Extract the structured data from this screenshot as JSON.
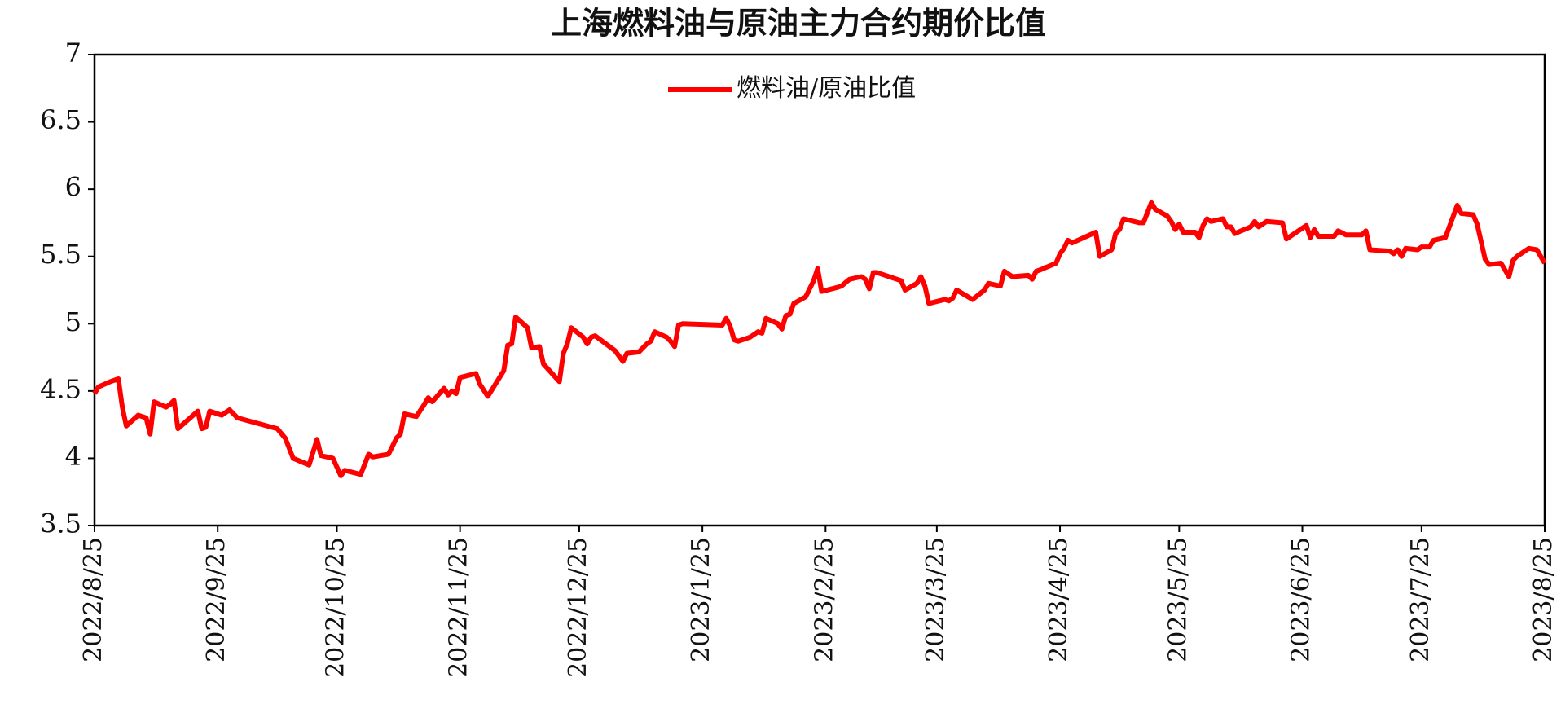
{
  "chart_data": {
    "type": "line",
    "title": "上海燃料油与原油主力合约期价比值",
    "x": [
      "2022/8/25",
      "2022/8/26",
      "2022/8/29",
      "2022/8/31",
      "2022/9/1",
      "2022/9/2",
      "2022/9/5",
      "2022/9/7",
      "2022/9/8",
      "2022/9/9",
      "2022/9/12",
      "2022/9/13",
      "2022/9/14",
      "2022/9/15",
      "2022/9/20",
      "2022/9/21",
      "2022/9/22",
      "2022/9/23",
      "2022/9/26",
      "2022/9/28",
      "2022/9/29",
      "2022/9/30",
      "2022/10/10",
      "2022/10/12",
      "2022/10/14",
      "2022/10/18",
      "2022/10/20",
      "2022/10/21",
      "2022/10/24",
      "2022/10/26",
      "2022/10/27",
      "2022/10/31",
      "2022/11/2",
      "2022/11/3",
      "2022/11/7",
      "2022/11/9",
      "2022/11/10",
      "2022/11/11",
      "2022/11/14",
      "2022/11/16",
      "2022/11/17",
      "2022/11/18",
      "2022/11/21",
      "2022/11/22",
      "2022/11/23",
      "2022/11/24",
      "2022/11/25",
      "2022/11/29",
      "2022/11/30",
      "2022/12/2",
      "2022/12/6",
      "2022/12/7",
      "2022/12/8",
      "2022/12/9",
      "2022/12/12",
      "2022/12/13",
      "2022/12/15",
      "2022/12/16",
      "2022/12/20",
      "2022/12/21",
      "2022/12/22",
      "2022/12/23",
      "2022/12/26",
      "2022/12/27",
      "2022/12/28",
      "2022/12/29",
      "2023/1/3",
      "2023/1/5",
      "2023/1/6",
      "2023/1/9",
      "2023/1/11",
      "2023/1/12",
      "2023/1/13",
      "2023/1/16",
      "2023/1/17",
      "2023/1/18",
      "2023/1/19",
      "2023/1/20",
      "2023/1/30",
      "2023/1/31",
      "2023/2/1",
      "2023/2/2",
      "2023/2/3",
      "2023/2/6",
      "2023/2/8",
      "2023/2/9",
      "2023/2/10",
      "2023/2/13",
      "2023/2/14",
      "2023/2/15",
      "2023/2/16",
      "2023/2/17",
      "2023/2/20",
      "2023/2/22",
      "2023/2/23",
      "2023/2/24",
      "2023/2/28",
      "2023/3/1",
      "2023/3/3",
      "2023/3/6",
      "2023/3/7",
      "2023/3/8",
      "2023/3/9",
      "2023/3/10",
      "2023/3/13",
      "2023/3/16",
      "2023/3/17",
      "2023/3/20",
      "2023/3/21",
      "2023/3/22",
      "2023/3/23",
      "2023/3/27",
      "2023/3/28",
      "2023/3/29",
      "2023/3/30",
      "2023/4/3",
      "2023/4/6",
      "2023/4/7",
      "2023/4/10",
      "2023/4/11",
      "2023/4/13",
      "2023/4/17",
      "2023/4/18",
      "2023/4/19",
      "2023/4/20",
      "2023/4/24",
      "2023/4/25",
      "2023/4/26",
      "2023/4/27",
      "2023/4/28",
      "2023/5/4",
      "2023/5/5",
      "2023/5/8",
      "2023/5/9",
      "2023/5/10",
      "2023/5/11",
      "2023/5/15",
      "2023/5/16",
      "2023/5/18",
      "2023/5/19",
      "2023/5/22",
      "2023/5/23",
      "2023/5/24",
      "2023/5/25",
      "2023/5/26",
      "2023/5/29",
      "2023/5/30",
      "2023/5/31",
      "2023/6/1",
      "2023/6/2",
      "2023/6/5",
      "2023/6/6",
      "2023/6/7",
      "2023/6/8",
      "2023/6/12",
      "2023/6/13",
      "2023/6/14",
      "2023/6/16",
      "2023/6/20",
      "2023/6/21",
      "2023/6/26",
      "2023/6/27",
      "2023/6/28",
      "2023/6/29",
      "2023/7/3",
      "2023/7/4",
      "2023/7/6",
      "2023/7/10",
      "2023/7/11",
      "2023/7/12",
      "2023/7/17",
      "2023/7/18",
      "2023/7/19",
      "2023/7/20",
      "2023/7/21",
      "2023/7/24",
      "2023/7/25",
      "2023/7/27",
      "2023/7/28",
      "2023/7/31",
      "2023/8/3",
      "2023/8/4",
      "2023/8/7",
      "2023/8/8",
      "2023/8/10",
      "2023/8/11",
      "2023/8/14",
      "2023/8/16",
      "2023/8/17",
      "2023/8/18",
      "2023/8/21",
      "2023/8/23",
      "2023/8/25"
    ],
    "series": [
      {
        "name": "燃料油/原油比值",
        "color": "#ff0000",
        "values": [
          4.48,
          4.53,
          4.57,
          4.59,
          4.38,
          4.24,
          4.32,
          4.3,
          4.18,
          4.42,
          4.38,
          4.4,
          4.43,
          4.22,
          4.35,
          4.22,
          4.23,
          4.35,
          4.32,
          4.36,
          4.33,
          4.3,
          4.22,
          4.15,
          4.0,
          3.95,
          4.14,
          4.02,
          4.0,
          3.87,
          3.91,
          3.88,
          4.03,
          4.01,
          4.03,
          4.15,
          4.18,
          4.33,
          4.31,
          4.4,
          4.45,
          4.42,
          4.52,
          4.47,
          4.5,
          4.48,
          4.6,
          4.63,
          4.55,
          4.46,
          4.65,
          4.84,
          4.85,
          5.05,
          4.97,
          4.82,
          4.83,
          4.7,
          4.57,
          4.78,
          4.85,
          4.97,
          4.9,
          4.85,
          4.9,
          4.91,
          4.8,
          4.72,
          4.78,
          4.79,
          4.85,
          4.87,
          4.94,
          4.9,
          4.87,
          4.83,
          4.99,
          5.0,
          4.99,
          5.04,
          4.98,
          4.88,
          4.87,
          4.9,
          4.94,
          4.93,
          5.04,
          5.0,
          4.96,
          5.06,
          5.07,
          5.15,
          5.2,
          5.32,
          5.41,
          5.24,
          5.27,
          5.28,
          5.33,
          5.35,
          5.33,
          5.26,
          5.38,
          5.38,
          5.35,
          5.32,
          5.25,
          5.3,
          5.35,
          5.28,
          5.15,
          5.18,
          5.17,
          5.19,
          5.25,
          5.18,
          5.25,
          5.3,
          5.28,
          5.39,
          5.35,
          5.36,
          5.33,
          5.39,
          5.4,
          5.45,
          5.52,
          5.56,
          5.62,
          5.6,
          5.68,
          5.5,
          5.55,
          5.67,
          5.7,
          5.78,
          5.75,
          5.75,
          5.9,
          5.85,
          5.8,
          5.76,
          5.7,
          5.74,
          5.68,
          5.68,
          5.64,
          5.73,
          5.78,
          5.76,
          5.78,
          5.72,
          5.72,
          5.67,
          5.72,
          5.76,
          5.72,
          5.76,
          5.75,
          5.63,
          5.73,
          5.64,
          5.7,
          5.65,
          5.65,
          5.69,
          5.66,
          5.66,
          5.69,
          5.55,
          5.54,
          5.52,
          5.55,
          5.5,
          5.56,
          5.55,
          5.57,
          5.57,
          5.62,
          5.64,
          5.88,
          5.82,
          5.81,
          5.74,
          5.48,
          5.44,
          5.45,
          5.35,
          5.47,
          5.5,
          5.56,
          5.55,
          5.45
        ]
      }
    ],
    "xlim": [
      "2022/8/25",
      "2023/8/25"
    ],
    "xticks": [
      "2022/8/25",
      "2022/9/25",
      "2022/10/25",
      "2022/11/25",
      "2022/12/25",
      "2023/1/25",
      "2023/2/25",
      "2023/3/25",
      "2023/4/25",
      "2023/5/25",
      "2023/6/25",
      "2023/7/25",
      "2023/8/25"
    ],
    "ylim": [
      3.5,
      7
    ],
    "yticks": [
      3.5,
      4,
      4.5,
      5,
      5.5,
      6,
      6.5,
      7
    ],
    "grid": false,
    "legend": "top"
  }
}
